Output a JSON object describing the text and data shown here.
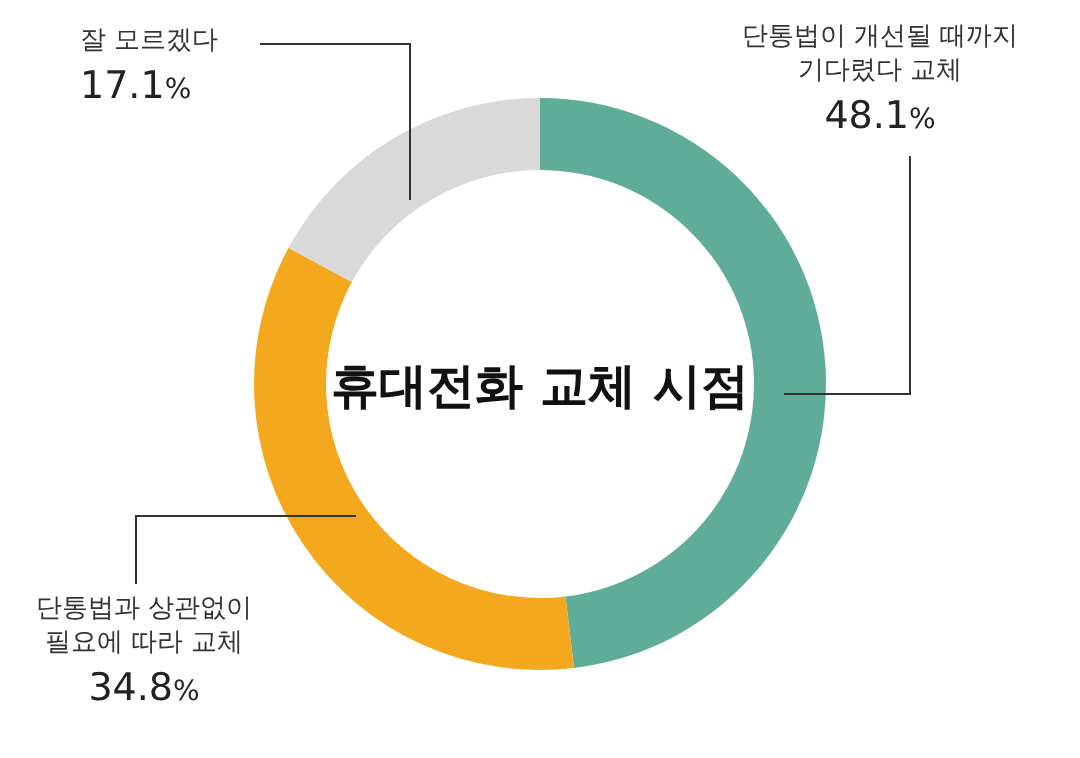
{
  "chart_data": {
    "type": "donut",
    "title": "휴대전화 교체 시점",
    "categories": [
      "단통법이 개선될 때까지\n기다렸다 교체",
      "단통법과 상관없이\n필요에 따라 교체",
      "잘 모르겠다"
    ],
    "values": [
      48.1,
      34.8,
      17.1
    ],
    "colors": [
      "#5fac98",
      "#f4a81d",
      "#d9d9d9"
    ],
    "value_labels": [
      "48.1%",
      "34.8%",
      "17.1%"
    ]
  }
}
